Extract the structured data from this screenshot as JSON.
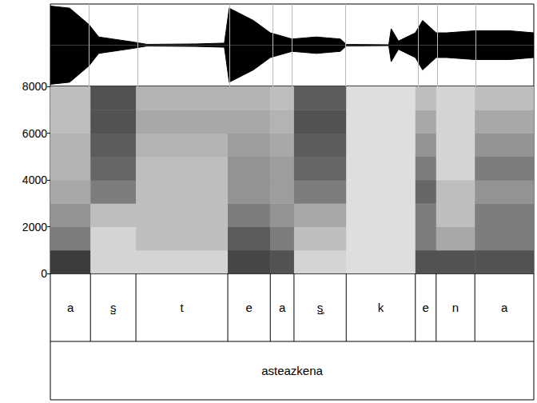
{
  "chart_data": [
    {
      "type": "waveform",
      "x": [
        0,
        0.04,
        0.08,
        0.1,
        0.17,
        0.2,
        0.3,
        0.36,
        0.37,
        0.42,
        0.455,
        0.5,
        0.55,
        0.6,
        0.612,
        0.7,
        0.705,
        0.72,
        0.755,
        0.77,
        0.798,
        0.82,
        0.878,
        0.95,
        1.0
      ],
      "values": [
        0.95,
        0.9,
        0.5,
        0.2,
        0.08,
        0.02,
        0.03,
        0.05,
        0.9,
        0.6,
        0.3,
        0.15,
        0.2,
        0.15,
        0.02,
        0.01,
        0.4,
        0.1,
        0.3,
        0.6,
        0.3,
        0.3,
        0.35,
        0.35,
        0.3
      ],
      "xlim": [
        0,
        1
      ],
      "ylim": [
        -1,
        1
      ],
      "tick_labels": false,
      "color": "#000000"
    },
    {
      "type": "spectrogram",
      "xlim": [
        0,
        1
      ],
      "ylim": [
        0,
        8000
      ],
      "yticks": [
        0,
        2000,
        4000,
        6000,
        8000
      ],
      "bands": [
        0,
        1000,
        2000,
        3000,
        4000,
        5000,
        6000,
        7000,
        8000
      ],
      "cells": [
        [
          0.9,
          0.6,
          0.5,
          0.4,
          0.35,
          0.35,
          0.3,
          0.3
        ],
        [
          0.2,
          0.2,
          0.3,
          0.6,
          0.7,
          0.75,
          0.8,
          0.8
        ],
        [
          0.2,
          0.3,
          0.3,
          0.3,
          0.3,
          0.35,
          0.4,
          0.35
        ],
        [
          0.85,
          0.75,
          0.6,
          0.5,
          0.5,
          0.45,
          0.4,
          0.35
        ],
        [
          0.8,
          0.6,
          0.5,
          0.45,
          0.45,
          0.4,
          0.35,
          0.3
        ],
        [
          0.2,
          0.3,
          0.4,
          0.6,
          0.7,
          0.75,
          0.8,
          0.75
        ],
        [
          0.15,
          0.15,
          0.15,
          0.15,
          0.15,
          0.15,
          0.15,
          0.15
        ],
        [
          0.8,
          0.6,
          0.6,
          0.7,
          0.6,
          0.5,
          0.4,
          0.3
        ],
        [
          0.8,
          0.4,
          0.3,
          0.3,
          0.2,
          0.2,
          0.2,
          0.2
        ],
        [
          0.8,
          0.6,
          0.6,
          0.5,
          0.6,
          0.5,
          0.4,
          0.3
        ]
      ],
      "tick_labels": "y"
    },
    {
      "type": "textgrid",
      "xlim": [
        0,
        1
      ],
      "boundaries": [
        0,
        0.083,
        0.177,
        0.367,
        0.455,
        0.504,
        0.612,
        0.755,
        0.798,
        0.878,
        1.0
      ],
      "segments": [
        "a",
        "s̺",
        "t",
        "e",
        "a",
        "s̺̥",
        "k",
        "e",
        "n",
        "a"
      ],
      "word": "asteazkena",
      "tick_labels": false
    }
  ]
}
